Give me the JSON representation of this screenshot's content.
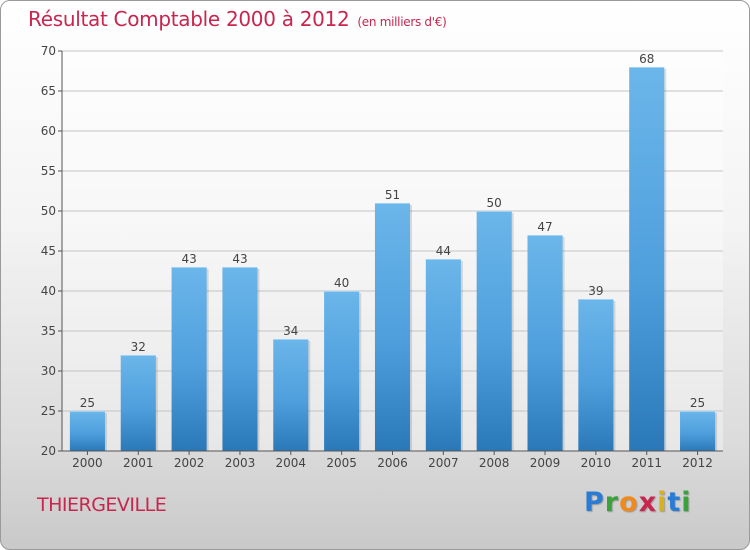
{
  "title": "Résultat Comptable 2000 à 2012",
  "subtitle": "(en milliers d'€)",
  "commune": "THIERGEVILLE",
  "logo": {
    "letters": [
      "P",
      "r",
      "o",
      "x",
      "i",
      "t",
      "i"
    ],
    "colors": [
      "#2a7bd3",
      "#3aa23a",
      "#f08a1c",
      "#c8264e",
      "#d6b21e",
      "#2a7bd3",
      "#3aa23a"
    ]
  },
  "colors": {
    "bar": "#4f9fdd",
    "bar_top": "#6bb6ea",
    "bar_bottom": "#2a78b8",
    "title": "#c8264e"
  },
  "chart_data": {
    "type": "bar",
    "title": "Résultat Comptable 2000 à 2012",
    "xlabel": "",
    "ylabel": "",
    "categories": [
      "2000",
      "2001",
      "2002",
      "2003",
      "2004",
      "2005",
      "2006",
      "2007",
      "2008",
      "2009",
      "2010",
      "2011",
      "2012"
    ],
    "values": [
      25,
      32,
      43,
      43,
      34,
      40,
      51,
      44,
      50,
      47,
      39,
      68,
      25
    ],
    "ylim": [
      20,
      70
    ],
    "yticks": [
      20,
      25,
      30,
      35,
      40,
      45,
      50,
      55,
      60,
      65,
      70
    ],
    "grid": true
  }
}
